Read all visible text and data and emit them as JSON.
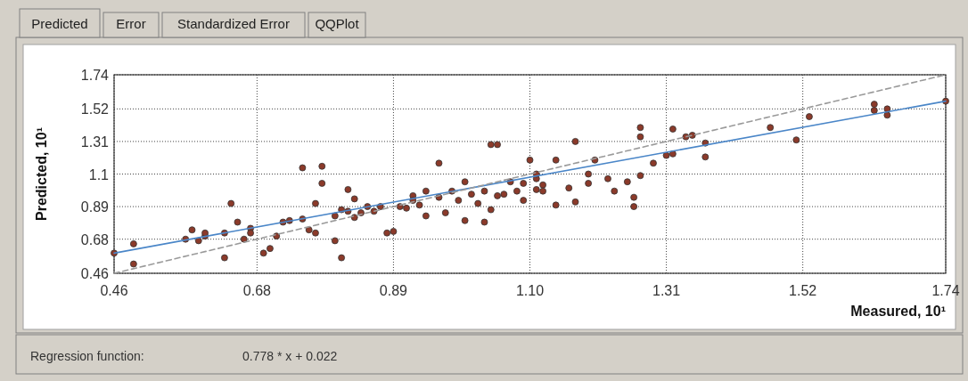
{
  "chart_data": {
    "type": "scatter",
    "xlabel": "Measured, 10¹",
    "ylabel": "Predicted, 10¹",
    "annotations": [
      "Predicted",
      "Error",
      "Standardized Error",
      "QQPlot",
      "Regression function:",
      "0.778 * x + 0.022"
    ],
    "xlim": [
      0.46,
      1.74
    ],
    "ylim": [
      0.46,
      1.74
    ],
    "xticks": [
      0.46,
      0.68,
      0.89,
      {
        "value": 1.1,
        "label": "1.10"
      },
      1.31,
      1.52,
      1.74
    ],
    "yticks": [
      0.46,
      0.68,
      0.89,
      1.1,
      1.31,
      1.52,
      1.74
    ],
    "grid": true,
    "series": [
      {
        "color": "#8b3a2a",
        "marker": "circle",
        "x": [
          0.46,
          0.49,
          0.49,
          0.57,
          0.58,
          0.59,
          0.6,
          0.6,
          0.63,
          0.64,
          0.63,
          0.65,
          0.66,
          0.67,
          0.67,
          0.69,
          0.7,
          0.71,
          0.72,
          0.73,
          0.75,
          0.76,
          0.77,
          0.75,
          0.78,
          0.78,
          0.77,
          0.8,
          0.81,
          0.8,
          0.81,
          0.82,
          0.82,
          0.83,
          0.83,
          0.84,
          0.85,
          0.86,
          0.87,
          0.88,
          0.89,
          0.9,
          0.91,
          0.92,
          0.93,
          0.92,
          0.94,
          0.94,
          0.96,
          0.96,
          0.97,
          0.98,
          0.99,
          1.0,
          1.0,
          1.01,
          1.02,
          1.03,
          1.03,
          1.04,
          1.04,
          1.05,
          1.05,
          1.06,
          1.07,
          1.08,
          1.09,
          1.11,
          1.09,
          1.1,
          1.11,
          1.12,
          1.11,
          1.12,
          1.14,
          1.14,
          1.16,
          1.17,
          1.17,
          1.19,
          1.19,
          1.2,
          1.22,
          1.23,
          1.25,
          1.26,
          1.26,
          1.27,
          1.27,
          1.27,
          1.29,
          1.31,
          1.32,
          1.32,
          1.34,
          1.35,
          1.37,
          1.37,
          1.47,
          1.51,
          1.53,
          1.63,
          1.63,
          1.65,
          1.65,
          1.74
        ],
        "values": [
          0.59,
          0.65,
          0.52,
          0.68,
          0.74,
          0.67,
          0.7,
          0.72,
          0.72,
          0.91,
          0.56,
          0.79,
          0.68,
          0.75,
          0.72,
          0.59,
          0.62,
          0.7,
          0.79,
          0.8,
          0.81,
          0.74,
          0.72,
          1.14,
          1.15,
          1.04,
          0.91,
          0.83,
          0.87,
          0.67,
          0.56,
          0.86,
          1.0,
          0.94,
          0.82,
          0.85,
          0.89,
          0.86,
          0.89,
          0.72,
          0.73,
          0.89,
          0.88,
          0.96,
          0.9,
          0.93,
          0.83,
          0.99,
          1.17,
          0.95,
          0.85,
          0.99,
          0.93,
          0.8,
          1.05,
          0.97,
          0.91,
          0.79,
          0.99,
          1.29,
          0.87,
          1.29,
          0.96,
          0.97,
          1.05,
          0.99,
          0.93,
          1.07,
          1.04,
          1.19,
          1.1,
          0.99,
          1.0,
          1.03,
          0.9,
          1.19,
          1.01,
          1.31,
          0.92,
          1.04,
          1.1,
          1.19,
          1.07,
          0.99,
          1.05,
          0.89,
          0.95,
          1.4,
          1.34,
          1.09,
          1.17,
          1.22,
          1.23,
          1.39,
          1.34,
          1.35,
          1.3,
          1.21,
          1.4,
          1.32,
          1.47,
          1.55,
          1.51,
          1.52,
          1.48,
          1.57
        ]
      },
      {
        "type": "line",
        "color": "#4a86c8",
        "line_style": "solid",
        "marker": "none",
        "x": [
          0.46,
          1.74
        ],
        "values": [
          0.59,
          1.57
        ]
      },
      {
        "type": "line",
        "color": "#9a9a9a",
        "line_style": "dashed",
        "marker": "none",
        "x": [
          0.46,
          1.74
        ],
        "values": [
          0.46,
          1.74
        ]
      }
    ]
  }
}
